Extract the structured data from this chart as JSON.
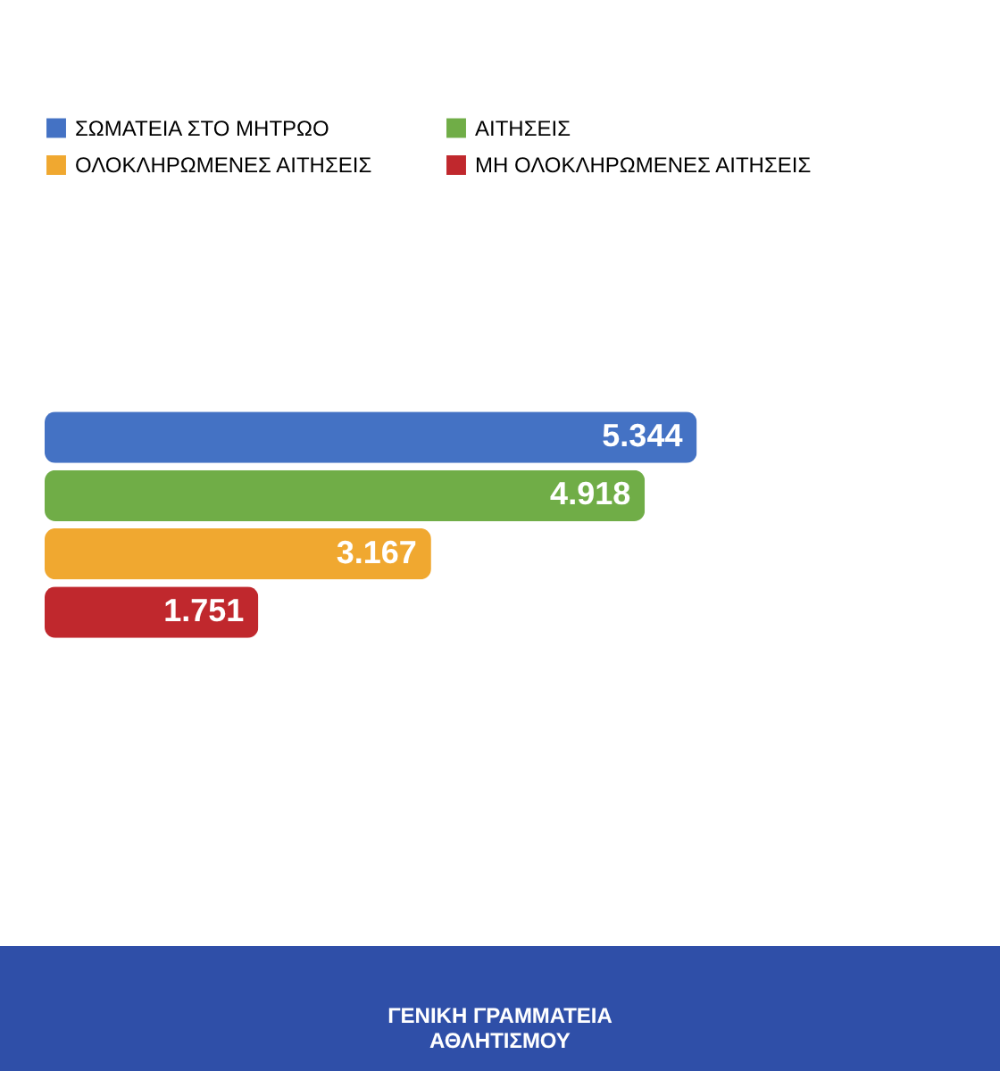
{
  "chart_data": {
    "type": "bar",
    "orientation": "horizontal",
    "categories": [
      null
    ],
    "series": [
      {
        "name": "ΣΩΜΑΤΕΙΑ ΣΤΟ ΜΗΤΡΩΟ",
        "color": "#4472c4",
        "values": [
          5344
        ],
        "value_labels": [
          "5.344"
        ]
      },
      {
        "name": "ΑΙΤΗΣΕΙΣ",
        "color": "#70ad47",
        "values": [
          4918
        ],
        "value_labels": [
          "4.918"
        ]
      },
      {
        "name": "ΟΛΟΚΛΗΡΩΜΕΝΕΣ ΑΙΤΗΣΕΙΣ",
        "color": "#f0a830",
        "values": [
          3167
        ],
        "value_labels": [
          "3.167"
        ]
      },
      {
        "name": "ΜΗ ΟΛΟΚΛΗΡΩΜΕΝΕΣ ΑΙΤΗΣΕΙΣ",
        "color": "#c0282d",
        "values": [
          1751
        ],
        "value_labels": [
          "1.751"
        ]
      }
    ],
    "legend": "top",
    "annotations": [
      "ΓΕΝΙΚΗ ΓΡΑΜΜΑΤΕΙΑ ΑΘΛΗΤΙΣΜΟΥ"
    ]
  }
}
